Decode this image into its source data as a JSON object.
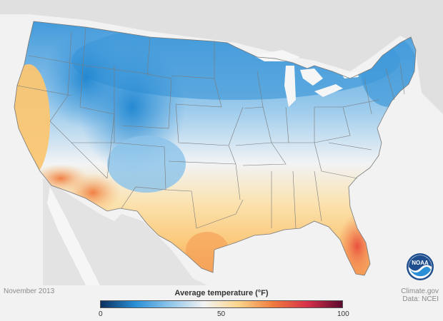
{
  "map": {
    "month_label": "November 2013",
    "credit_line1": "Climate.gov",
    "credit_line2": "Data: NCEI",
    "legend_title": "Average temperature (°F)",
    "legend_ticks": [
      "0",
      "50",
      "100"
    ],
    "legend_range": [
      0,
      100
    ],
    "logo_text": "NOAA",
    "colors": {
      "background": "#f2f2f2",
      "land_outside": "#e0e0e0",
      "ocean": "#f6f6f6",
      "border": "#7a7a7a",
      "cold_deep": "#0b2f5e",
      "cold": "#2a8fd6",
      "cool": "#8ec5ea",
      "neutral": "#f3f3f3",
      "warm": "#fbd58a",
      "hot": "#f07a3e",
      "very_hot": "#d6304a",
      "extreme": "#5a0a2e",
      "noaa_blue": "#1f4e8f"
    }
  }
}
